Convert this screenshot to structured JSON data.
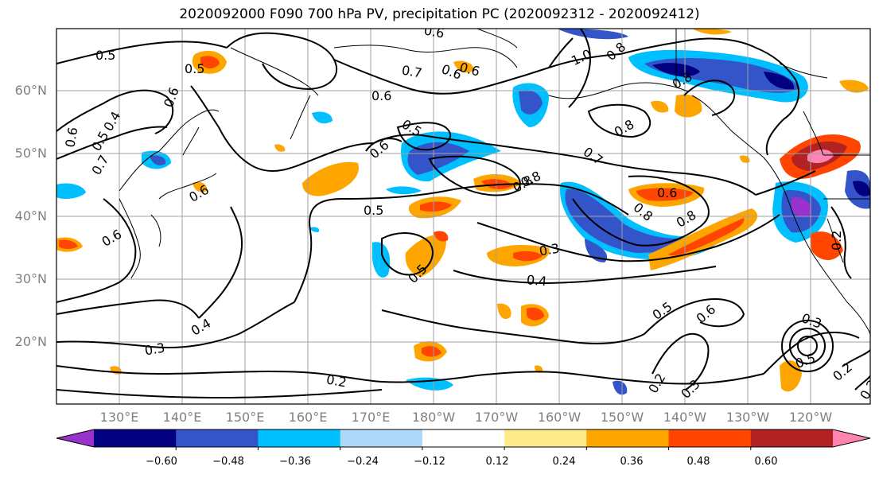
{
  "title": "2020092000 F090 700 hPa PV, precipitation PC (2020092312 - 2020092412)",
  "lat_labels": [
    "60°N",
    "50°N",
    "40°N",
    "30°N",
    "20°N"
  ],
  "lon_labels": [
    "130°E",
    "140°E",
    "150°E",
    "160°E",
    "170°E",
    "180°W",
    "170°W",
    "160°W",
    "150°W",
    "140°W",
    "130°W",
    "120°W"
  ],
  "colorbar": {
    "ticks": [
      "−0.60",
      "−0.48",
      "−0.36",
      "−0.24",
      "−0.12",
      "0.12",
      "0.24",
      "0.36",
      "0.48",
      "0.60"
    ],
    "colors": [
      "#9932cc",
      "#000080",
      "#3455c9",
      "#00bfff",
      "#add8f8",
      "#ffffff",
      "#ffeb8a",
      "#ffa500",
      "#ff4500",
      "#b22222",
      "#ff85b0"
    ]
  },
  "contour_labels": [
    "0.5",
    "0.5",
    "0.6",
    "0.6",
    "0.4",
    "0.5",
    "0.6",
    "0.7",
    "0.6",
    "1.0",
    "0.8",
    "0.8",
    "0.8",
    "0.6",
    "0.5",
    "0.6",
    "0.6",
    "0.8",
    "0.7",
    "0.6",
    "0.8",
    "0.8",
    "0.5",
    "0.6",
    "0.5",
    "0.3",
    "0.4",
    "0.4",
    "0.3",
    "0.5",
    "0.6",
    "0.2",
    "0.2",
    "0.3",
    "0.2",
    "0.3",
    "0.5",
    "0.2",
    "0.2",
    "0.6",
    "0.7",
    "0.8"
  ]
}
